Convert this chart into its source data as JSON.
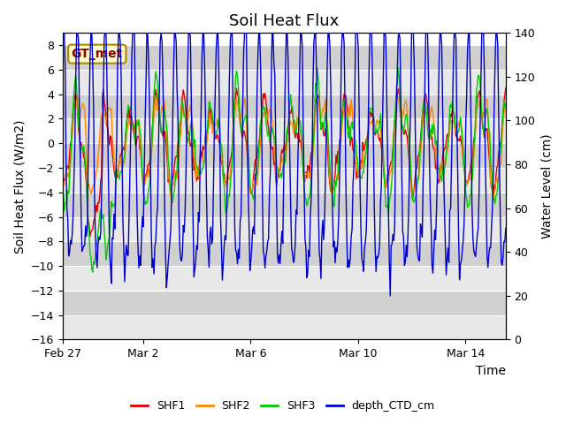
{
  "title": "Soil Heat Flux",
  "ylabel_left": "Soil Heat Flux (W/m2)",
  "ylabel_right": "Water Level (cm)",
  "xlabel": "Time",
  "ylim_left": [
    -16,
    9
  ],
  "ylim_right": [
    0,
    140
  ],
  "yticks_left": [
    -16,
    -14,
    -12,
    -10,
    -8,
    -6,
    -4,
    -2,
    0,
    2,
    4,
    6,
    8
  ],
  "yticks_right": [
    0,
    20,
    40,
    60,
    80,
    100,
    120,
    140
  ],
  "colors": {
    "SHF1": "#dd0000",
    "SHF2": "#ff8800",
    "SHF3": "#00cc00",
    "depth_CTD_cm": "#0000cc"
  },
  "legend_labels": [
    "SHF1",
    "SHF2",
    "SHF3",
    "depth_CTD_cm"
  ],
  "annotation_text": "GT_met",
  "background_color": "#ffffff",
  "plot_bg_color": "#d8d8d8",
  "band_color_light": "#e8e8e8",
  "band_color_dark": "#d0d0d0",
  "grid_line_color": "#ffffff",
  "title_fontsize": 13,
  "label_fontsize": 10,
  "tick_fontsize": 9,
  "num_points": 500,
  "x_tick_labels": [
    "Feb 27",
    "Mar 2",
    "Mar 6",
    "Mar 10",
    "Mar 14"
  ],
  "x_tick_positions": [
    0,
    3,
    7,
    11,
    15
  ],
  "xlim": [
    0,
    16.5
  ]
}
